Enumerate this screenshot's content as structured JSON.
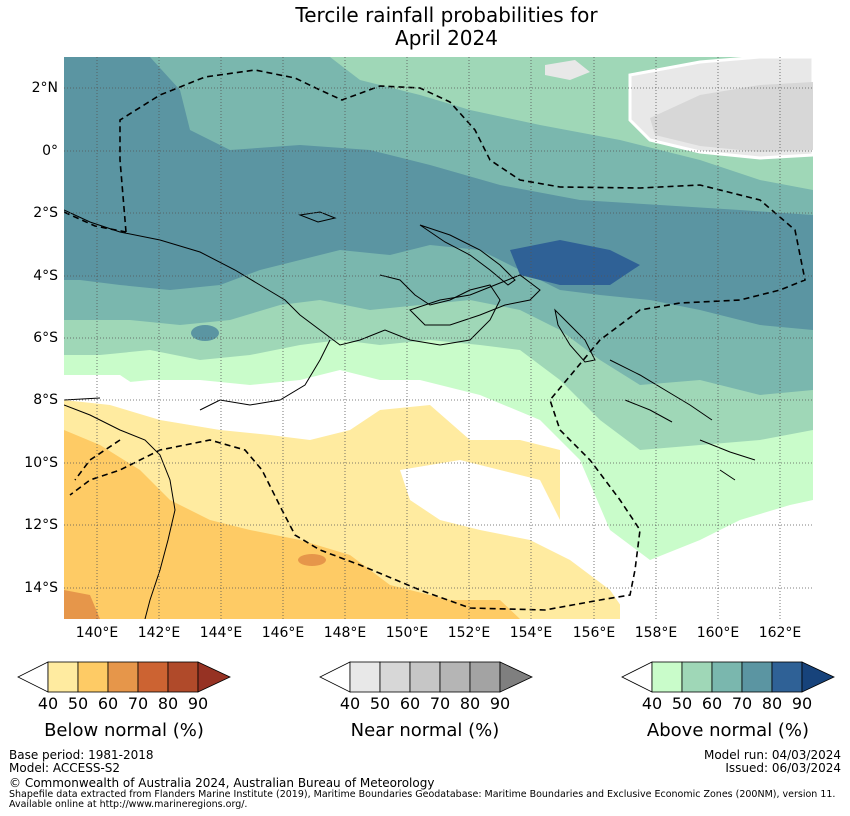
{
  "title": {
    "line1": "Tercile rainfall probabilities for",
    "line2": "April 2024"
  },
  "axes": {
    "lat_labels": [
      "2°N",
      "0°",
      "2°S",
      "4°S",
      "6°S",
      "8°S",
      "10°S",
      "12°S",
      "14°S"
    ],
    "lon_labels": [
      "140°E",
      "142°E",
      "144°E",
      "146°E",
      "148°E",
      "150°E",
      "152°E",
      "154°E",
      "156°E",
      "158°E",
      "160°E",
      "162°E"
    ]
  },
  "colorbars": [
    {
      "title": "Below normal (%)",
      "ticks": [
        "40",
        "50",
        "60",
        "70",
        "80",
        "90"
      ],
      "colors": [
        "#ffffff",
        "#ffeba0",
        "#fecb65",
        "#e6964a",
        "#cc6332",
        "#b04a2a",
        "#963223"
      ]
    },
    {
      "title": "Near normal (%)",
      "ticks": [
        "40",
        "50",
        "60",
        "70",
        "80",
        "90"
      ],
      "colors": [
        "#ffffff",
        "#e8e8e8",
        "#d7d7d7",
        "#c6c6c6",
        "#b5b5b5",
        "#a3a3a3",
        "#7f7f7f"
      ]
    },
    {
      "title": "Above normal (%)",
      "ticks": [
        "40",
        "50",
        "60",
        "70",
        "80",
        "90"
      ],
      "colors": [
        "#ffffff",
        "#c9fcca",
        "#9fd7b7",
        "#7ab7ae",
        "#5b95a2",
        "#2f6196",
        "#17437b"
      ]
    }
  ],
  "footer": {
    "base_period": "Base period: 1981-2018",
    "model": "Model: ACCESS-S2",
    "model_run": "Model run: 04/03/2024",
    "issued": "Issued: 06/03/2024",
    "copyright": "© Commonwealth of Australia 2024, Australian Bureau of Meteorology",
    "shapefile": "Shapefile data extracted from Flanders Marine Institute (2019), Maritime Boundaries Geodatabase: Maritime Boundaries and Exclusive Economic Zones (200NM), version 11.",
    "available": "Available online at http://www.marineregions.org/."
  }
}
